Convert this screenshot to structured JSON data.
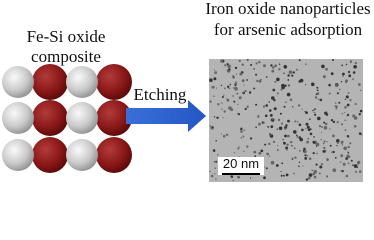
{
  "left_label": {
    "lines": [
      "Fe-Si oxide",
      "composite"
    ]
  },
  "right_label": {
    "lines": [
      "Iron oxide nanoparticles",
      "for arsenic adsorption"
    ]
  },
  "arrow_label": "Etching",
  "scale_bar": "20 nm"
}
